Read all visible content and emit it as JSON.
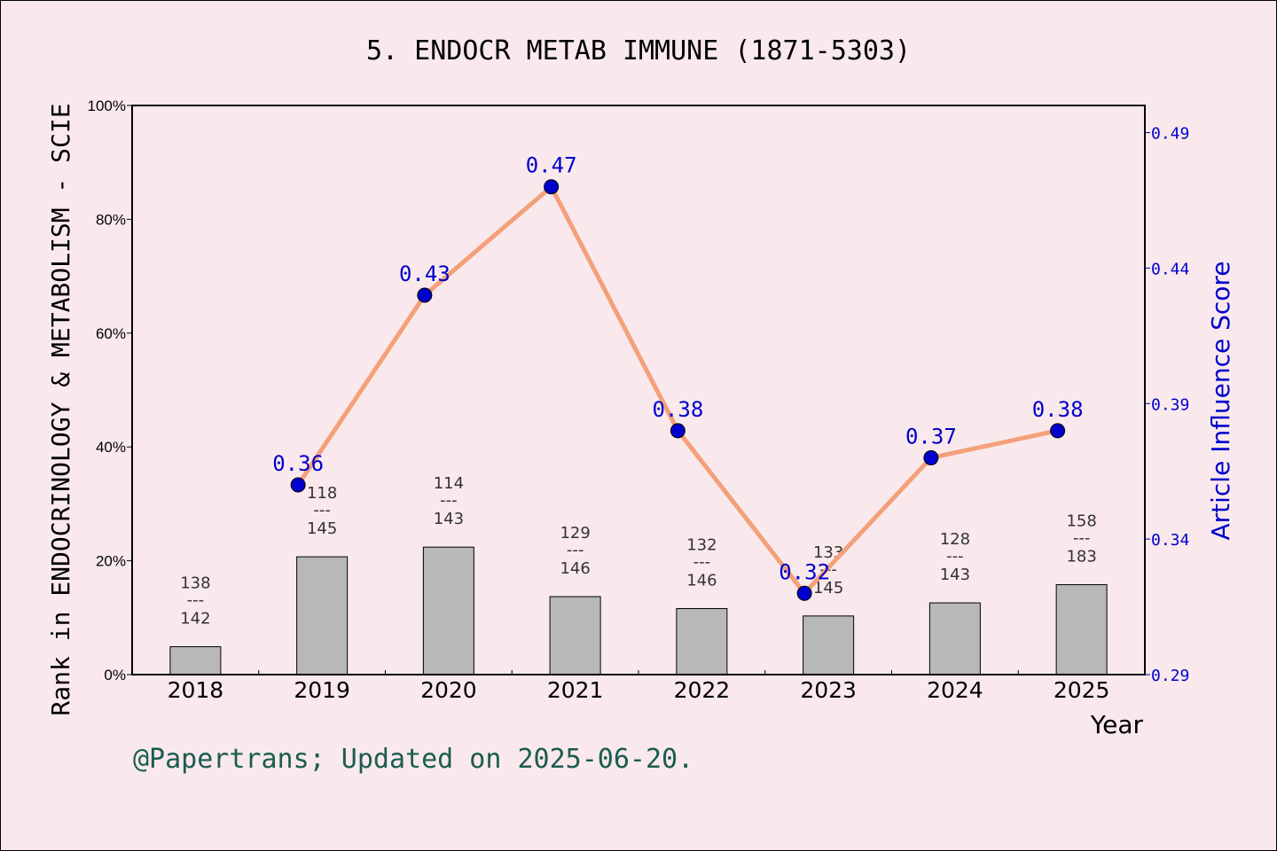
{
  "chart_data": {
    "type": "bar+line",
    "title": "5. ENDOCR METAB IMMUNE (1871-5303)",
    "xlabel": "Year",
    "ylabel_left": "Rank in ENDOCRINOLOGY & METABOLISM - SCIE",
    "ylabel_right": "Article Influence Score",
    "categories": [
      "2018",
      "2019",
      "2020",
      "2021",
      "2022",
      "2023",
      "2024",
      "2025"
    ],
    "left_axis": {
      "ylim": [
        0,
        100
      ],
      "ticks": [
        0,
        20,
        40,
        60,
        80,
        100
      ],
      "tick_labels": [
        "0%",
        "20%",
        "40%",
        "60%",
        "80%",
        "100%"
      ]
    },
    "right_axis": {
      "ylim": [
        0.29,
        0.5
      ],
      "ticks": [
        0.29,
        0.34,
        0.39,
        0.44,
        0.49
      ],
      "tick_labels": [
        "0.29",
        "0.34",
        "0.39",
        "0.44",
        "0.49"
      ]
    },
    "bars": {
      "name": "Rank percentile",
      "values": [
        4.9,
        20.7,
        22.4,
        13.7,
        11.6,
        10.3,
        12.6,
        15.8
      ],
      "rank": [
        "138",
        "118",
        "114",
        "129",
        "132",
        "133",
        "128",
        "158"
      ],
      "total": [
        "142",
        "145",
        "143",
        "146",
        "146",
        "145",
        "143",
        "183"
      ],
      "separator": "---",
      "color": "#b8b8b8"
    },
    "line": {
      "name": "Article Influence Score",
      "values": [
        null,
        0.36,
        0.43,
        0.47,
        0.38,
        0.32,
        0.37,
        0.38
      ],
      "labels": [
        "",
        "0.36",
        "0.43",
        "0.47",
        "0.38",
        "0.32",
        "0.37",
        "0.38"
      ],
      "line_color": "#f4a07a",
      "marker_color": "#0000cc"
    },
    "grid": false
  },
  "footer": "@Papertrans; Updated on 2025-06-20."
}
